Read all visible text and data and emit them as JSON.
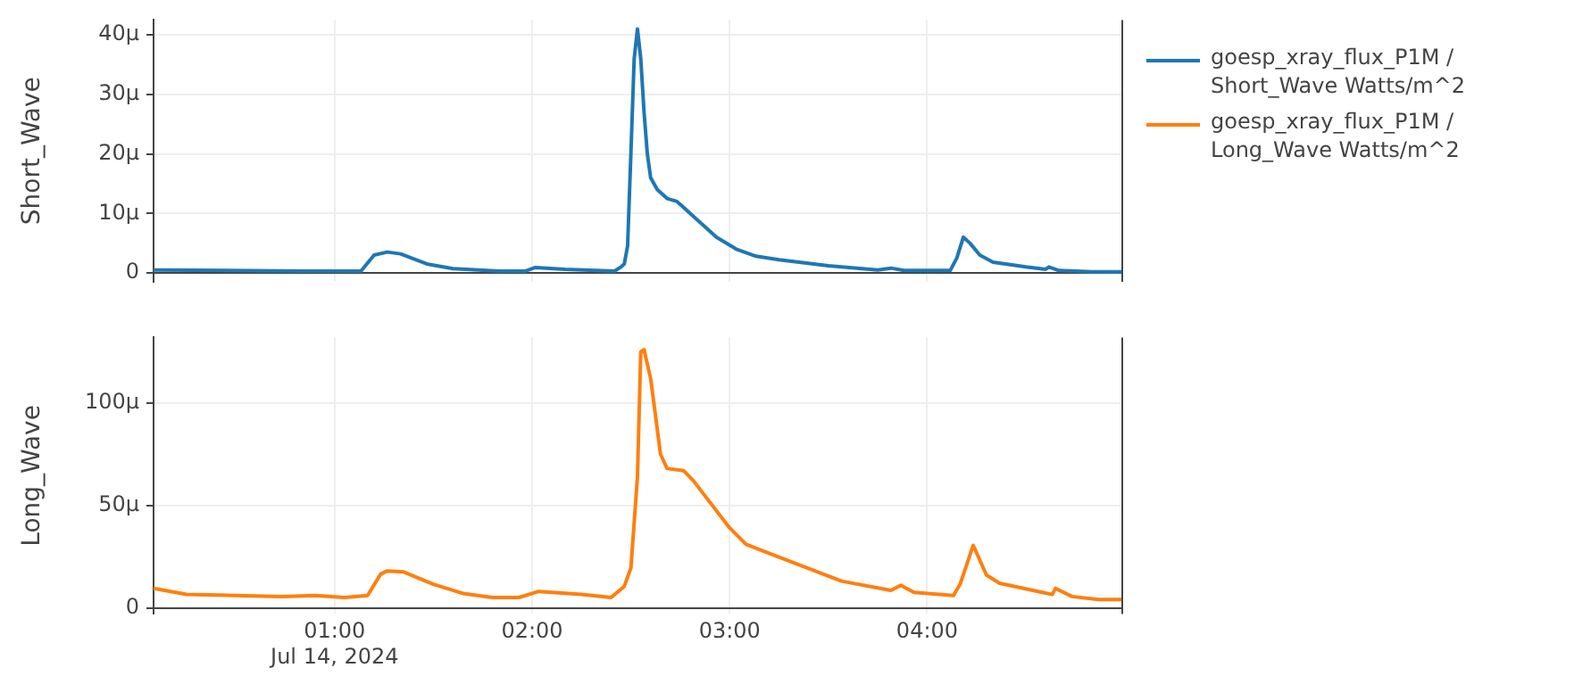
{
  "chart_data": [
    {
      "type": "line",
      "ylabel": "Short_Wave",
      "legend": "top right",
      "grid": true,
      "tick_labels": "y",
      "line_style": "solid",
      "marker": "none",
      "xlim": [
        "2024-07-14T00:05",
        "2024-07-14T04:59"
      ],
      "xticks": [
        {
          "value": "2024-07-14T01:00",
          "label": null
        },
        {
          "value": "2024-07-14T02:00",
          "label": null
        },
        {
          "value": "2024-07-14T03:00",
          "label": null
        },
        {
          "value": "2024-07-14T04:00",
          "label": null
        }
      ],
      "ylim": [
        -1.5,
        42.5
      ],
      "yticks": [
        0,
        {
          "value": 10,
          "label": "10μ"
        },
        {
          "value": 20,
          "label": "20μ"
        },
        {
          "value": 30,
          "label": "30μ"
        },
        {
          "value": 40,
          "label": "40μ"
        }
      ],
      "series": [
        {
          "name": "goesp_xray_flux_P1M / Short_Wave Watts/m^2",
          "color": "#1f77b4",
          "x": [
            "2024-07-14T00:05",
            "2024-07-14T00:50",
            "2024-07-14T01:08",
            "2024-07-14T01:12",
            "2024-07-14T01:16",
            "2024-07-14T01:20",
            "2024-07-14T01:28",
            "2024-07-14T01:36",
            "2024-07-14T01:50",
            "2024-07-14T01:58",
            "2024-07-14T02:01",
            "2024-07-14T02:10",
            "2024-07-14T02:25",
            "2024-07-14T02:27",
            "2024-07-14T02:28",
            "2024-07-14T02:29",
            "2024-07-14T02:30",
            "2024-07-14T02:31",
            "2024-07-14T02:32",
            "2024-07-14T02:33",
            "2024-07-14T02:34",
            "2024-07-14T02:35",
            "2024-07-14T02:36",
            "2024-07-14T02:38",
            "2024-07-14T02:41",
            "2024-07-14T02:44",
            "2024-07-14T02:50",
            "2024-07-14T02:56",
            "2024-07-14T03:02",
            "2024-07-14T03:08",
            "2024-07-14T03:15",
            "2024-07-14T03:30",
            "2024-07-14T03:45",
            "2024-07-14T03:49",
            "2024-07-14T03:53",
            "2024-07-14T04:07",
            "2024-07-14T04:09",
            "2024-07-14T04:11",
            "2024-07-14T04:13",
            "2024-07-14T04:16",
            "2024-07-14T04:20",
            "2024-07-14T04:30",
            "2024-07-14T04:36",
            "2024-07-14T04:37",
            "2024-07-14T04:40",
            "2024-07-14T04:50",
            "2024-07-14T04:59"
          ],
          "values": [
            0.5,
            0.3,
            0.3,
            3,
            3.5,
            3.2,
            1.5,
            0.7,
            0.3,
            0.3,
            0.9,
            0.6,
            0.3,
            1,
            1.5,
            4.5,
            20,
            36,
            41,
            36,
            27,
            20,
            16,
            14,
            12.5,
            12,
            9,
            6,
            4,
            2.8,
            2.2,
            1.2,
            0.5,
            0.8,
            0.4,
            0.4,
            2.5,
            6,
            5,
            3,
            1.8,
            1,
            0.6,
            1,
            0.4,
            0.2,
            0.2
          ]
        }
      ]
    },
    {
      "type": "line",
      "ylabel": "Long_Wave",
      "legend": "top right",
      "grid": true,
      "line_style": "solid",
      "marker": "none",
      "xlim": [
        "2024-07-14T00:05",
        "2024-07-14T04:59"
      ],
      "xticks": [
        {
          "value": "2024-07-14T01:00",
          "label": "01:00\nJul 14, 2024"
        },
        {
          "value": "2024-07-14T02:00",
          "label": "02:00"
        },
        {
          "value": "2024-07-14T03:00",
          "label": "03:00"
        },
        {
          "value": "2024-07-14T04:00",
          "label": "04:00"
        }
      ],
      "ylim": [
        -3,
        132
      ],
      "yticks": [
        0,
        {
          "value": 50,
          "label": "50μ"
        },
        {
          "value": 100,
          "label": "100μ"
        }
      ],
      "series": [
        {
          "name": "goesp_xray_flux_P1M / Long_Wave Watts/m^2",
          "color": "#ff7f0e",
          "x": [
            "2024-07-14T00:05",
            "2024-07-14T00:15",
            "2024-07-14T00:44",
            "2024-07-14T00:54",
            "2024-07-14T01:03",
            "2024-07-14T01:10",
            "2024-07-14T01:14",
            "2024-07-14T01:16",
            "2024-07-14T01:21",
            "2024-07-14T01:30",
            "2024-07-14T01:39",
            "2024-07-14T01:48",
            "2024-07-14T01:56",
            "2024-07-14T02:02",
            "2024-07-14T02:15",
            "2024-07-14T02:24",
            "2024-07-14T02:28",
            "2024-07-14T02:30",
            "2024-07-14T02:32",
            "2024-07-14T02:33",
            "2024-07-14T02:34",
            "2024-07-14T02:36",
            "2024-07-14T02:39",
            "2024-07-14T02:41",
            "2024-07-14T02:46",
            "2024-07-14T02:49",
            "2024-07-14T03:00",
            "2024-07-14T03:05",
            "2024-07-14T03:13",
            "2024-07-14T03:34",
            "2024-07-14T03:49",
            "2024-07-14T03:52",
            "2024-07-14T03:56",
            "2024-07-14T04:08",
            "2024-07-14T04:10",
            "2024-07-14T04:14",
            "2024-07-14T04:18",
            "2024-07-14T04:22",
            "2024-07-14T04:35",
            "2024-07-14T04:38",
            "2024-07-14T04:39",
            "2024-07-14T04:44",
            "2024-07-14T04:52",
            "2024-07-14T04:59"
          ],
          "values": [
            9.5,
            6.5,
            5.5,
            6,
            5,
            6,
            16.5,
            18,
            17.5,
            11.5,
            7,
            5,
            5,
            8,
            6.5,
            5,
            10.5,
            19.5,
            64,
            125,
            126,
            112,
            75,
            68,
            67,
            62,
            39,
            31,
            26,
            13,
            8.5,
            11,
            7.5,
            6,
            11.5,
            30.5,
            16,
            12,
            7.5,
            6.5,
            9.5,
            5.5,
            4,
            4
          ]
        }
      ]
    }
  ]
}
